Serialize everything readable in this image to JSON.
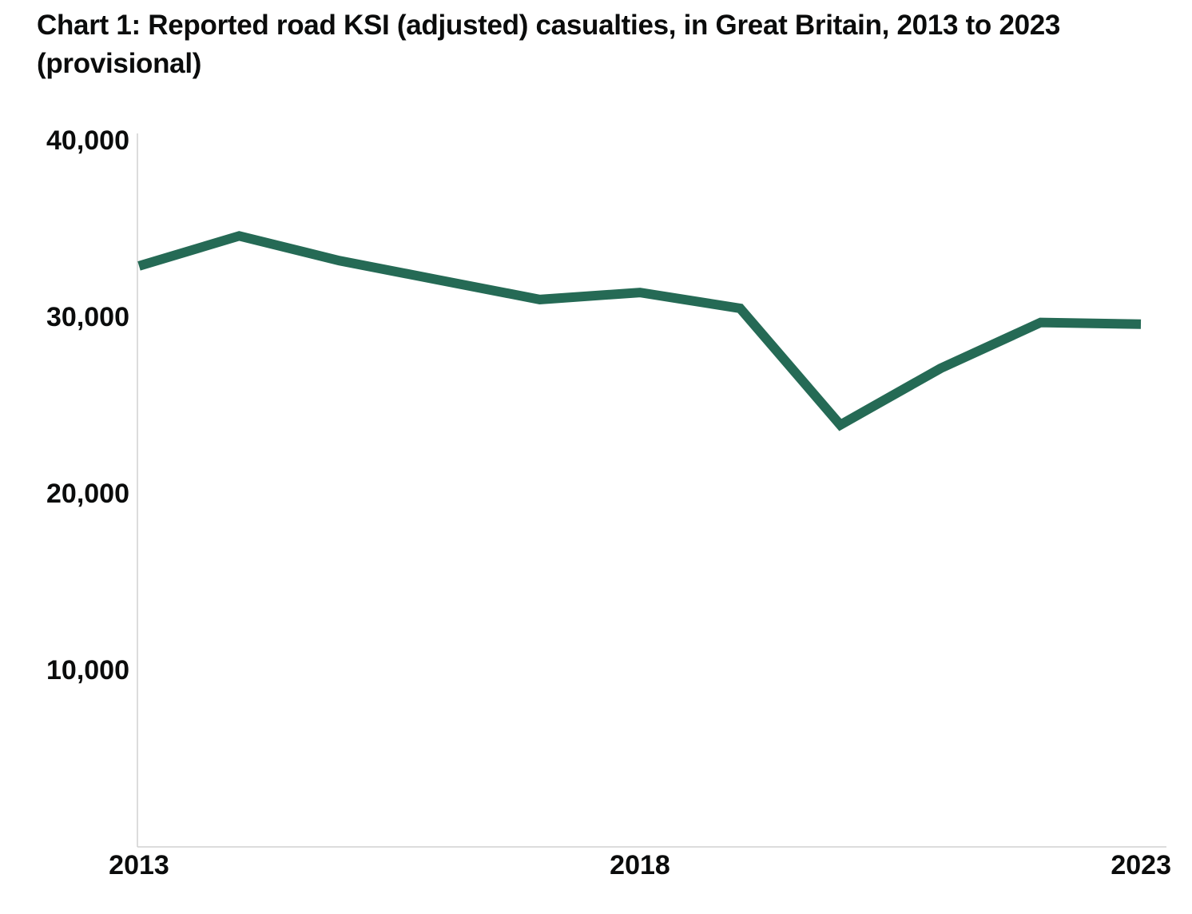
{
  "chart_data": {
    "type": "line",
    "title": "Chart 1: Reported road KSI (adjusted) casualties, in Great Britain, 2013 to 2023 (provisional)",
    "xlabel": "",
    "ylabel": "",
    "x": [
      2013,
      2014,
      2015,
      2016,
      2017,
      2018,
      2019,
      2020,
      2021,
      2022,
      2023
    ],
    "series": [
      {
        "name": "Reported road KSI (adjusted) casualties",
        "color": "#256a55",
        "values": [
          32900,
          34600,
          33200,
          32100,
          31000,
          31400,
          30500,
          23900,
          27100,
          29700,
          29600
        ]
      }
    ],
    "ylim": [
      0,
      40000
    ],
    "yticks": [
      10000,
      20000,
      30000,
      40000
    ],
    "ytick_labels": [
      "10,000",
      "20,000",
      "30,000",
      "40,000"
    ],
    "xticks": [
      2013,
      2018,
      2023
    ],
    "xtick_labels": [
      "2013",
      "2018",
      "2023"
    ],
    "grid": false,
    "legend": "none"
  }
}
